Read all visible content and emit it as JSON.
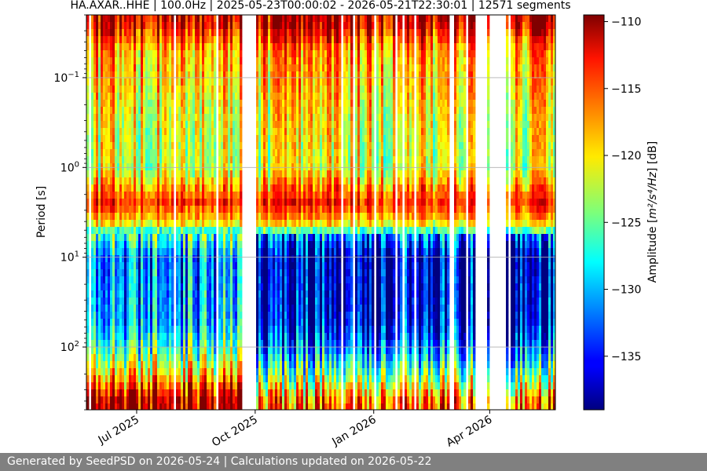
{
  "chart_data": {
    "type": "heatmap",
    "title": "HA.AXAR..HHE | 100.0Hz | 2025-05-23T00:00:02 - 2026-05-21T22:30:01 | 12571 segments",
    "xlabel": "",
    "ylabel": "Period [s]",
    "x_range": [
      "2025-05-23",
      "2026-05-22"
    ],
    "x_ticks": [
      {
        "date": "2025-07-01",
        "label": "Jul 2025"
      },
      {
        "date": "2025-10-01",
        "label": "Oct 2025"
      },
      {
        "date": "2026-01-01",
        "label": "Jan 2026"
      },
      {
        "date": "2026-04-01",
        "label": "Apr 2026"
      }
    ],
    "y_scale": "log",
    "y_inverted": true,
    "y_range": [
      0.02,
      500
    ],
    "y_ticks": [
      {
        "value": 0.1,
        "base": "10",
        "exp": "−1"
      },
      {
        "value": 1,
        "base": "10",
        "exp": "0"
      },
      {
        "value": 10,
        "base": "10",
        "exp": "1"
      },
      {
        "value": 100,
        "base": "10",
        "exp": "2"
      }
    ],
    "grid": true,
    "colormap": "jet",
    "colorbar": {
      "label_text": "Amplitude [",
      "label_unit": "m²/s⁴/Hz",
      "label_suffix": "] [dB]",
      "range": [
        -139,
        -109.5
      ],
      "ticks": [
        -110,
        -115,
        -120,
        -125,
        -130,
        -135
      ],
      "tick_labels": [
        "−110",
        "−115",
        "−120",
        "−125",
        "−130",
        "−135"
      ]
    },
    "data_gaps": [
      {
        "start": "2025-09-21",
        "end": "2025-10-01"
      },
      {
        "start": "2025-12-06",
        "end": "2025-12-08"
      },
      {
        "start": "2026-03-20",
        "end": "2026-03-30"
      },
      {
        "start": "2026-03-31",
        "end": "2026-04-14"
      }
    ],
    "period_profile_db": [
      {
        "period": 0.025,
        "db": -112
      },
      {
        "period": 0.05,
        "db": -118
      },
      {
        "period": 0.1,
        "db": -119
      },
      {
        "period": 0.3,
        "db": -121
      },
      {
        "period": 1,
        "db": -122
      },
      {
        "period": 2.5,
        "db": -114
      },
      {
        "period": 4,
        "db": -119
      },
      {
        "period": 6,
        "db": -131
      },
      {
        "period": 10,
        "db": -136
      },
      {
        "period": 50,
        "db": -135
      },
      {
        "period": 100,
        "db": -131
      },
      {
        "period": 200,
        "db": -124
      },
      {
        "period": 400,
        "db": -115
      }
    ]
  },
  "footer": {
    "text": "Generated by SeedPSD on 2026-05-24 | Calculations updated on 2026-05-22"
  }
}
